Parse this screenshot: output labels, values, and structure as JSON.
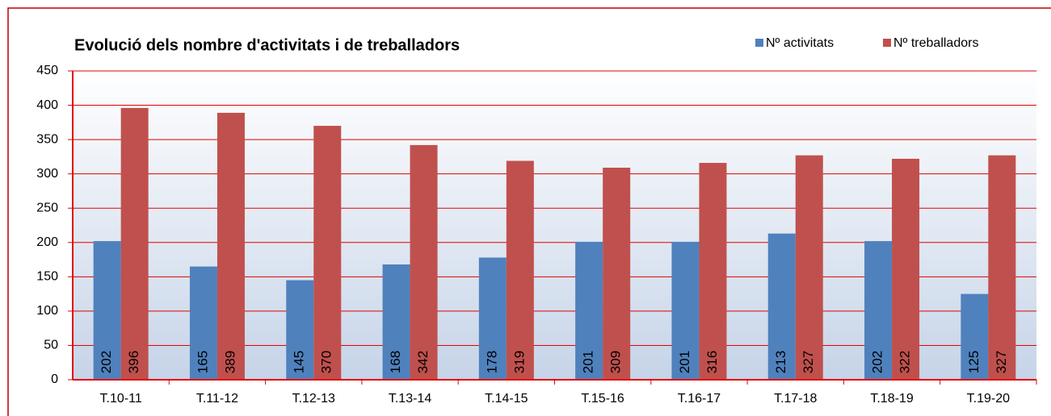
{
  "chart_data": {
    "type": "bar",
    "title": "Evolució dels nombre d'activitats i de treballadors",
    "categories": [
      "T.10-11",
      "T.11-12",
      "T.12-13",
      "T.13-14",
      "T.14-15",
      "T.15-16",
      "T.16-17",
      "T.17-18",
      "T.18-19",
      "T.19-20"
    ],
    "series": [
      {
        "name": "Nº activitats",
        "color": "#4f81bd",
        "values": [
          202,
          165,
          145,
          168,
          178,
          201,
          201,
          213,
          202,
          125
        ]
      },
      {
        "name": "Nº treballadors",
        "color": "#c0504d",
        "values": [
          396,
          389,
          370,
          342,
          319,
          309,
          316,
          327,
          322,
          327
        ]
      }
    ],
    "ylim": [
      0,
      450
    ],
    "yticks": [
      0,
      50,
      100,
      150,
      200,
      250,
      300,
      350,
      400,
      450
    ],
    "grid": true,
    "legend": "top-right"
  }
}
